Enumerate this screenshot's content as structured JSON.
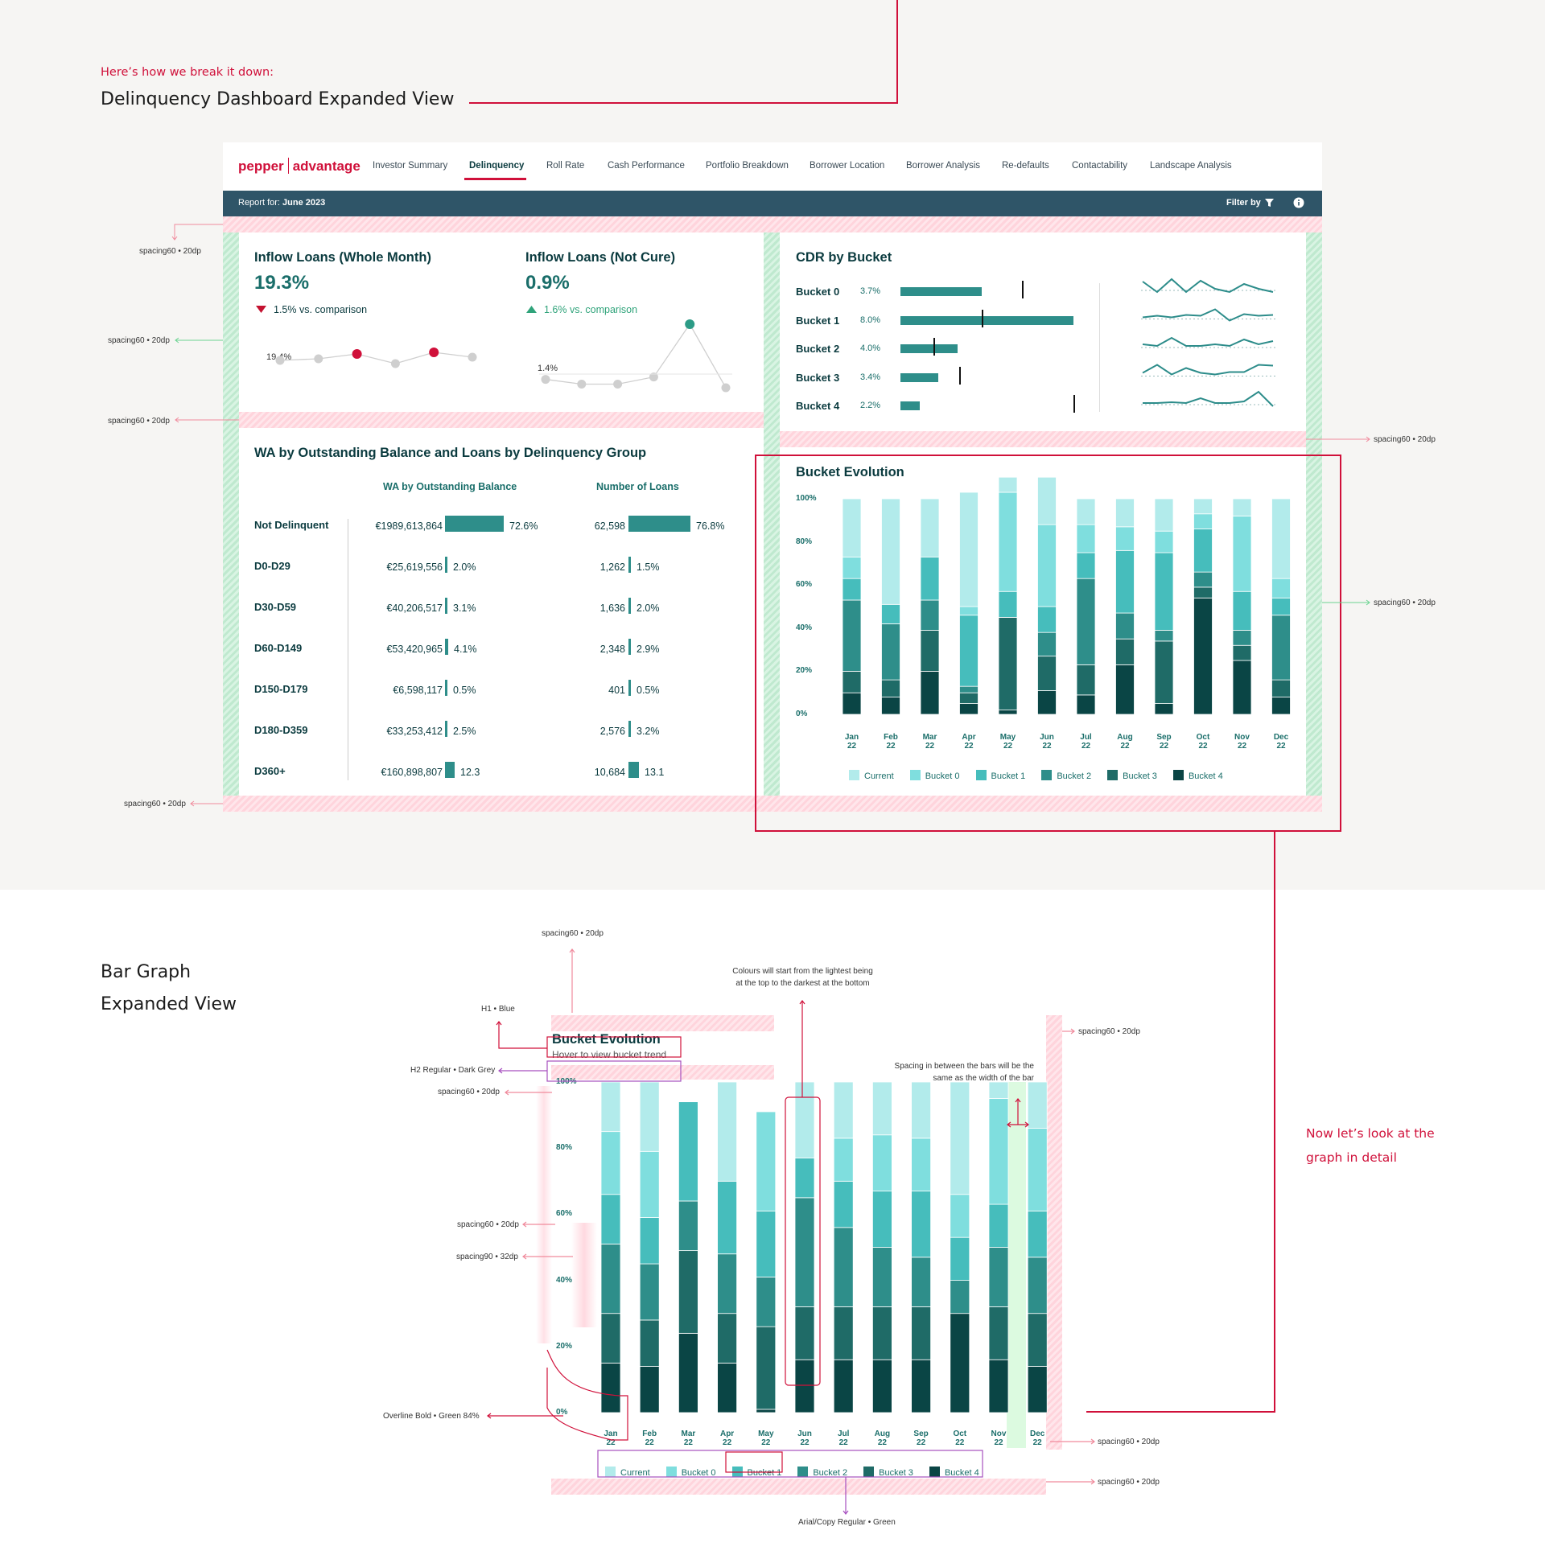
{
  "intro": {
    "kicker": "Here’s how we break it down:",
    "title": "Delinquency Dashboard Expanded View"
  },
  "app": {
    "brand_left": "pepper",
    "brand_right": "advantage",
    "nav": [
      "Investor Summary",
      "Delinquency",
      "Roll Rate",
      "Cash Performance",
      "Portfolio Breakdown",
      "Borrower Location",
      "Borrower Analysis",
      "Re-defaults",
      "Contactability",
      "Landscape Analysis"
    ],
    "active_nav": "Delinquency",
    "report_label": "Report for:",
    "report_value": "June 2023",
    "filter_label": "Filter by"
  },
  "colors": {
    "brand": "#d0103a",
    "header": "#2f5568",
    "teal": "#2c8c8a",
    "current": "#b2ebeb",
    "b0": "#7fdede",
    "b1": "#46bdbc",
    "b2": "#2e8e8a",
    "b3": "#1f6b67",
    "b4": "#0a4545"
  },
  "kpi1": {
    "title": "Inflow Loans (Whole Month)",
    "value": "19.3%",
    "delta": "1.5% vs. comparison",
    "direction": "down",
    "spark_label": "19.4%",
    "spark": [
      19.4,
      19.5,
      19.8,
      19.2,
      19.9,
      19.6
    ]
  },
  "kpi2": {
    "title": "Inflow Loans (Not Cure)",
    "value": "0.9%",
    "delta": "1.6% vs. comparison",
    "direction": "up",
    "spark_label": "1.4%",
    "spark": [
      1.4,
      1.0,
      1.0,
      1.6,
      6.0,
      0.7
    ]
  },
  "cdr": {
    "title": "CDR by Bucket",
    "rows": [
      {
        "name": "Bucket 0",
        "value": "3.7%",
        "bar": 0.47,
        "target": 0.7
      },
      {
        "name": "Bucket 1",
        "value": "8.0%",
        "bar": 1.0,
        "target": 0.47
      },
      {
        "name": "Bucket 2",
        "value": "4.0%",
        "bar": 0.33,
        "target": 0.19
      },
      {
        "name": "Bucket 3",
        "value": "3.4%",
        "bar": 0.22,
        "target": 0.34
      },
      {
        "name": "Bucket 4",
        "value": "2.2%",
        "bar": 0.11,
        "target": 1.0
      }
    ]
  },
  "wa": {
    "title": "WA by Outstanding Balance and Loans by Delinquency Group",
    "col1": "WA by Outstanding Balance",
    "col2": "Number of Loans",
    "rows": [
      {
        "label": "Not Delinquent",
        "bal": "€1989,613,864",
        "bal_pct": "72.6%",
        "bal_frac": 0.726,
        "loans": "62,598",
        "loans_pct": "76.8%",
        "loans_frac": 0.768
      },
      {
        "label": "D0-D29",
        "bal": "€25,619,556",
        "bal_pct": "2.0%",
        "bal_frac": 0.02,
        "loans": "1,262",
        "loans_pct": "1.5%",
        "loans_frac": 0.015
      },
      {
        "label": "D30-D59",
        "bal": "€40,206,517",
        "bal_pct": "3.1%",
        "bal_frac": 0.031,
        "loans": "1,636",
        "loans_pct": "2.0%",
        "loans_frac": 0.02
      },
      {
        "label": "D60-D149",
        "bal": "€53,420,965",
        "bal_pct": "4.1%",
        "bal_frac": 0.041,
        "loans": "2,348",
        "loans_pct": "2.9%",
        "loans_frac": 0.029
      },
      {
        "label": "D150-D179",
        "bal": "€6,598,117",
        "bal_pct": "0.5%",
        "bal_frac": 0.005,
        "loans": "401",
        "loans_pct": "0.5%",
        "loans_frac": 0.005
      },
      {
        "label": "D180-D359",
        "bal": "€33,253,412",
        "bal_pct": "2.5%",
        "bal_frac": 0.025,
        "loans": "2,576",
        "loans_pct": "3.2%",
        "loans_frac": 0.032
      },
      {
        "label": "D360+",
        "bal": "€160,898,807",
        "bal_pct": "12.3",
        "bal_frac": 0.123,
        "loans": "10,684",
        "loans_pct": "13.1",
        "loans_frac": 0.131
      }
    ]
  },
  "bucket_evolution": {
    "title": "Bucket Evolution",
    "subtitle": "Hover to view bucket trend"
  },
  "chart_data": [
    {
      "type": "bar",
      "stacked": true,
      "title": "Bucket Evolution",
      "categories": [
        "Jan 22",
        "Feb 22",
        "Mar 22",
        "Apr 22",
        "May 22",
        "Jun 22",
        "Jul 22",
        "Aug 22",
        "Sep 22",
        "Oct 22",
        "Nov 22",
        "Dec 22"
      ],
      "y_ticks": [
        "100%",
        "80%",
        "60%",
        "40%",
        "20%",
        "0%"
      ],
      "ylim": [
        0,
        100
      ],
      "series": [
        {
          "name": "Bucket 4",
          "values": [
            10,
            8,
            20,
            5,
            2,
            11,
            9,
            23,
            5,
            54,
            25,
            8
          ]
        },
        {
          "name": "Bucket 3",
          "values": [
            10,
            8,
            19,
            5,
            43,
            16,
            14,
            12,
            29,
            5,
            7,
            8
          ]
        },
        {
          "name": "Bucket 2",
          "values": [
            33,
            26,
            14,
            3,
            0,
            11,
            40,
            12,
            5,
            7,
            7,
            30
          ]
        },
        {
          "name": "Bucket 1",
          "values": [
            10,
            9,
            20,
            33,
            12,
            12,
            12,
            29,
            36,
            20,
            18,
            8
          ]
        },
        {
          "name": "Bucket 0",
          "values": [
            10,
            0,
            0,
            4,
            46,
            38,
            13,
            11,
            10,
            7,
            35,
            9
          ]
        },
        {
          "name": "Current",
          "values": [
            27,
            49,
            27,
            53,
            7,
            22,
            12,
            13,
            15,
            7,
            8,
            37
          ]
        }
      ],
      "legend": [
        "Current",
        "Bucket 0",
        "Bucket 1",
        "Bucket 2",
        "Bucket 3",
        "Bucket 4"
      ]
    },
    {
      "type": "bar",
      "stacked": true,
      "title": "Bucket Evolution",
      "categories": [
        "Jan 22",
        "Feb 22",
        "Mar 22",
        "Apr 22",
        "May 22",
        "Jun 22",
        "Jul 22",
        "Aug 22",
        "Sep 22",
        "Oct 22",
        "Nov 22",
        "Dec 22"
      ],
      "y_ticks": [
        "100%",
        "80%",
        "60%",
        "40%",
        "20%",
        "0%"
      ],
      "ylim": [
        0,
        100
      ],
      "series": [
        {
          "name": "Bucket 4",
          "values": [
            15,
            14,
            24,
            15,
            1,
            16,
            16,
            16,
            16,
            30,
            16,
            14
          ]
        },
        {
          "name": "Bucket 3",
          "values": [
            15,
            14,
            25,
            15,
            25,
            16,
            16,
            16,
            16,
            0,
            16,
            16
          ]
        },
        {
          "name": "Bucket 2",
          "values": [
            21,
            17,
            15,
            18,
            15,
            33,
            24,
            18,
            15,
            10,
            18,
            17
          ]
        },
        {
          "name": "Bucket 1",
          "values": [
            15,
            14,
            30,
            22,
            20,
            12,
            14,
            17,
            20,
            13,
            13,
            14
          ]
        },
        {
          "name": "Bucket 0",
          "values": [
            19,
            20,
            0,
            0,
            30,
            0,
            13,
            17,
            16,
            13,
            32,
            25
          ]
        },
        {
          "name": "Current",
          "values": [
            15,
            21,
            0,
            30,
            0,
            23,
            17,
            16,
            17,
            34,
            5,
            14
          ]
        }
      ],
      "legend": [
        "Current",
        "Bucket 0",
        "Bucket 1",
        "Bucket 2",
        "Bucket 3",
        "Bucket 4"
      ]
    }
  ],
  "annotations": {
    "spacing60": "spacing60 • 20dp",
    "spacing90": "spacing90 • 32dp",
    "h1": "H1 • Blue",
    "h2": "H2 Regular • Dark Grey",
    "overline": "Overline Bold  • Green 84%",
    "legend_font": "Arial/Copy Regular • Green",
    "colours_note": "Colours will start from the lightest being at the top to the darkest at the bottom",
    "spacing_note": "Spacing in between the bars will be the same as the width of the bar",
    "detail_line1": "Now let’s look at the",
    "detail_line2": "graph in detail"
  },
  "section2": {
    "line1": "Bar Graph",
    "line2": "Expanded View"
  }
}
